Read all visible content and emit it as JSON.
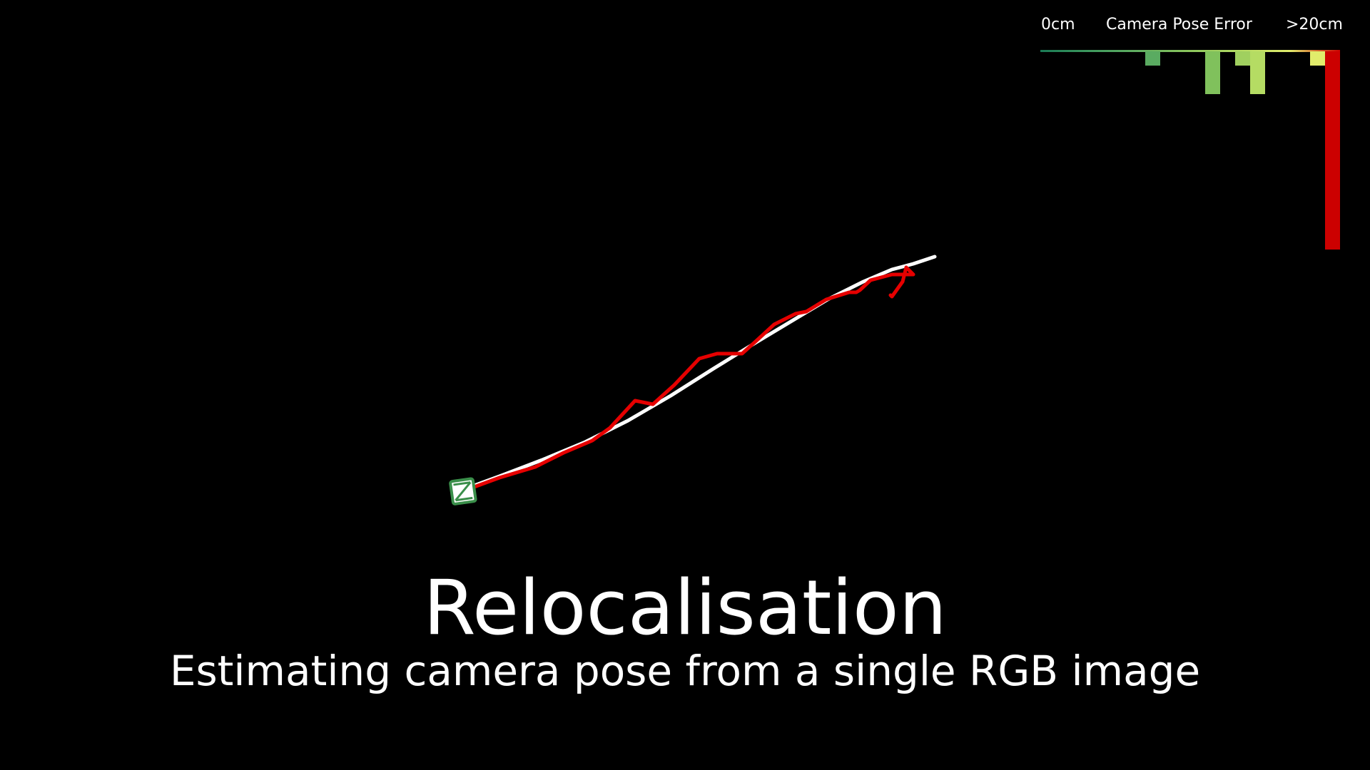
{
  "legend": {
    "min_label": "0cm",
    "title": "Camera Pose Error",
    "max_label": ">20cm",
    "colors": [
      "#1a7a55",
      "#3f9a5e",
      "#63b061",
      "#8cc65c",
      "#b5dc63",
      "#e1ec6b",
      "#cc0000"
    ],
    "histogram": [
      {
        "bin": 0,
        "count": 0,
        "color": "#1a7a55"
      },
      {
        "bin": 1,
        "count": 0,
        "color": "#1a7a55"
      },
      {
        "bin": 2,
        "count": 0,
        "color": "#2c8a5b"
      },
      {
        "bin": 3,
        "count": 0,
        "color": "#358f5c"
      },
      {
        "bin": 4,
        "count": 0,
        "color": "#3f9a5e"
      },
      {
        "bin": 5,
        "count": 0,
        "color": "#4aa05f"
      },
      {
        "bin": 6,
        "count": 0,
        "color": "#52a660"
      },
      {
        "bin": 7,
        "count": 1,
        "color": "#5aab61"
      },
      {
        "bin": 8,
        "count": 0,
        "color": "#63b061"
      },
      {
        "bin": 9,
        "count": 0,
        "color": "#6db65f"
      },
      {
        "bin": 10,
        "count": 0,
        "color": "#76bc5e"
      },
      {
        "bin": 11,
        "count": 3,
        "color": "#80c15c"
      },
      {
        "bin": 12,
        "count": 0,
        "color": "#8cc65c"
      },
      {
        "bin": 13,
        "count": 1,
        "color": "#a0d05f"
      },
      {
        "bin": 14,
        "count": 3,
        "color": "#b5dc63"
      },
      {
        "bin": 15,
        "count": 0,
        "color": "#c4e266"
      },
      {
        "bin": 16,
        "count": 0,
        "color": "#d2e769"
      },
      {
        "bin": 17,
        "count": 0,
        "color": "#dcea6a"
      },
      {
        "bin": 18,
        "count": 1,
        "color": "#e1ec6b"
      },
      {
        "bin": 19,
        "count": 14,
        "color": "#cc0000"
      }
    ]
  },
  "trajectory": {
    "ground_truth_color": "#ffffff",
    "estimate_color": "#e60000",
    "camera_icon": "camera-frustum-icon",
    "camera_color": "#3a8f4a"
  },
  "headline": "Relocalisation",
  "subheadline": "Estimating camera pose from a single RGB image"
}
